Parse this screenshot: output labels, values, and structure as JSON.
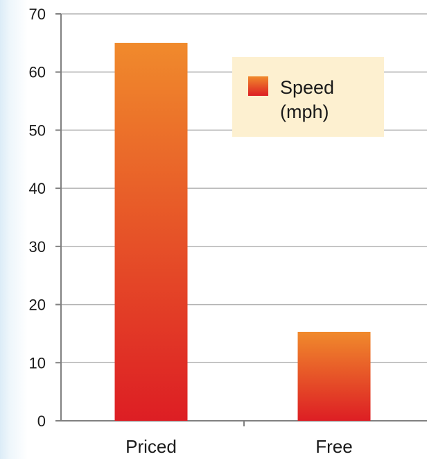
{
  "chart_data": {
    "type": "bar",
    "categories": [
      "Priced",
      "Free"
    ],
    "series": [
      {
        "name": "Speed (mph)",
        "values": [
          65,
          15.3
        ]
      }
    ],
    "legend": {
      "lines": [
        "Speed",
        "(mph)"
      ],
      "placement": "top-right"
    },
    "ylim": [
      0,
      70
    ],
    "yticks": [
      "0",
      "10",
      "20",
      "30",
      "40",
      "50",
      "60",
      "70"
    ],
    "grid": true,
    "colors": {
      "bar_top": "#f08a2c",
      "bar_bottom": "#dd1e24",
      "legend_bg": "#fdf0d0",
      "grid": "#b3b3b3",
      "axis": "#808080"
    }
  }
}
